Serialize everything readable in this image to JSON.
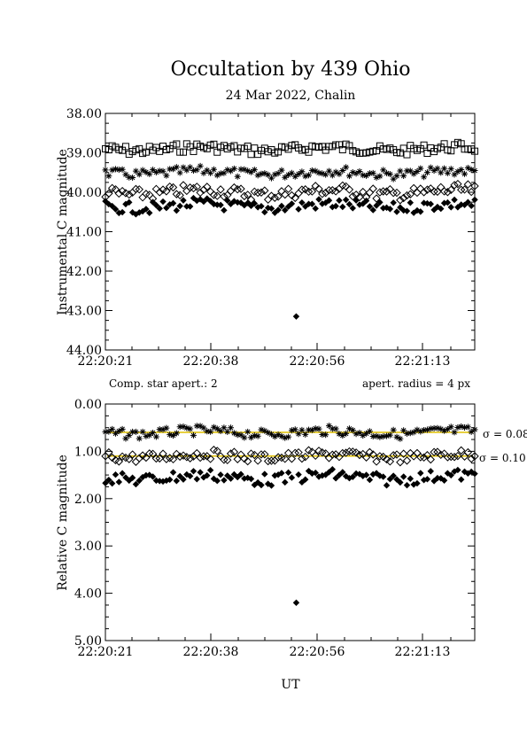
{
  "header": {
    "title": "Occultation by 439 Ohio",
    "subtitle": "24 Mar 2022, Chalin"
  },
  "notes": {
    "comp_star": "Comp. star apert.: 2",
    "radius": "apert. radius = 4 px"
  },
  "colors": {
    "sigma_line": "#e0c000",
    "marker": "#000000"
  },
  "chart_data": [
    {
      "type": "scatter",
      "ylabel": "Instrumental C magnitude",
      "ylim": [
        44.0,
        38.0
      ],
      "y_inverted": true,
      "yticks": [
        "38.00",
        "39.00",
        "40.00",
        "41.00",
        "42.00",
        "43.00",
        "44.00"
      ],
      "xticks": [
        "22:20:21",
        "22:20:38",
        "22:20:56",
        "22:21:13"
      ],
      "x_range_seconds": [
        0,
        60
      ],
      "grid": false,
      "series": [
        {
          "marker": "square-open",
          "mean": 38.9,
          "amplitude": 0.12,
          "values_description": ""
        },
        {
          "marker": "asterisk",
          "mean": 39.5,
          "amplitude": 0.12
        },
        {
          "marker": "diamond-open",
          "mean": 40.0,
          "amplitude": 0.15
        },
        {
          "marker": "diamond-filled",
          "mean": 40.35,
          "amplitude": 0.15,
          "outlier": {
            "x": 31,
            "y": 43.15
          }
        }
      ]
    },
    {
      "type": "scatter",
      "xlabel": "UT",
      "ylabel": "Relative C magnitude",
      "ylim": [
        5.0,
        0.0
      ],
      "y_inverted": true,
      "yticks": [
        "0.00",
        "1.00",
        "2.00",
        "3.00",
        "4.00",
        "5.00"
      ],
      "xticks": [
        "22:20:21",
        "22:20:38",
        "22:20:56",
        "22:21:13"
      ],
      "x_range_seconds": [
        0,
        60
      ],
      "grid": false,
      "sigma_labels": [
        "σ = 0.08",
        "σ = 0.10"
      ],
      "series": [
        {
          "marker": "asterisk",
          "mean": 0.6,
          "amplitude": 0.1,
          "sigma_line": true
        },
        {
          "marker": "diamond-open",
          "mean": 1.1,
          "amplitude": 0.1,
          "sigma_line": true
        },
        {
          "marker": "diamond-filled",
          "mean": 1.55,
          "amplitude": 0.13,
          "outlier": {
            "x": 31,
            "y": 4.2
          }
        }
      ]
    }
  ]
}
